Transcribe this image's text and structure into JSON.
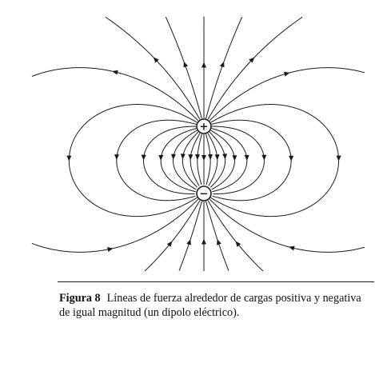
{
  "figure": {
    "charges": [
      {
        "sign": "+",
        "name": "positive-charge"
      },
      {
        "sign": "−",
        "name": "negative-charge"
      }
    ]
  },
  "caption": {
    "label": "Figura 8",
    "text": "Líneas de fuerza alrededor de cargas positiva y negativa de igual magnitud (un dipolo eléctrico)."
  },
  "colors": {
    "ink": "#1a1a1a",
    "background": "#ffffff"
  }
}
